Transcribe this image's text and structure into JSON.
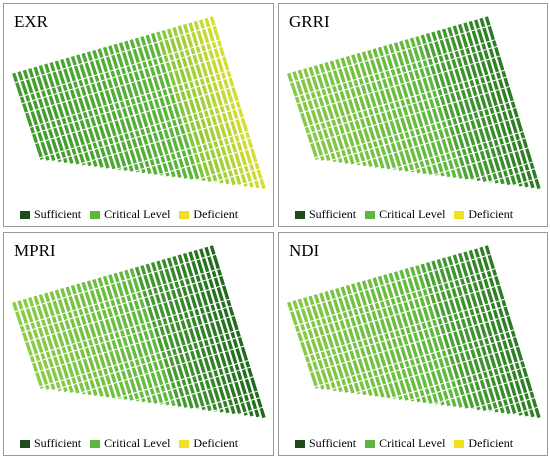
{
  "legend": {
    "items": [
      {
        "label": "Sufficient",
        "color": "#1f4a1a"
      },
      {
        "label": "Critical Level",
        "color": "#5cb83c"
      },
      {
        "label": "Deficient",
        "color": "#f0e020"
      }
    ]
  },
  "panels": [
    {
      "title": "EXR",
      "mix": "yellow-east"
    },
    {
      "title": "GRRI",
      "mix": "dark-east"
    },
    {
      "title": "MPRI",
      "mix": "dark-east-strong"
    },
    {
      "title": "NDI",
      "mix": "dark-east"
    }
  ]
}
